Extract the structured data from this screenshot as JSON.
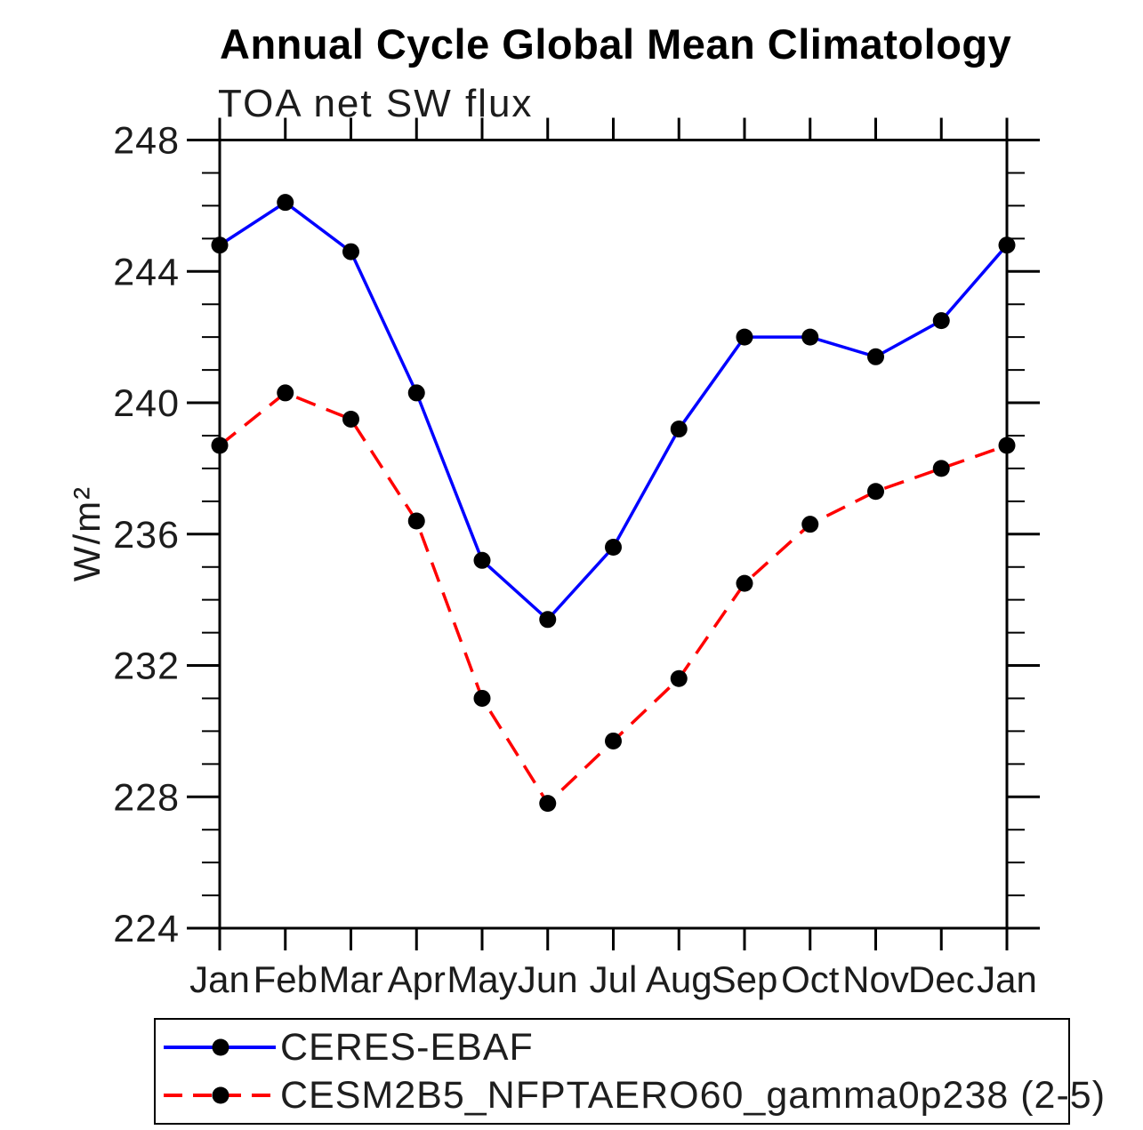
{
  "header": {
    "title": "Annual Cycle Global Mean Climatology",
    "subtitle": "TOA net SW flux"
  },
  "chart_data": {
    "type": "line",
    "title": "Annual Cycle Global Mean Climatology",
    "subtitle": "TOA net SW flux",
    "xlabel": "",
    "ylabel": "W/m²",
    "categories": [
      "Jan",
      "Feb",
      "Mar",
      "Apr",
      "May",
      "Jun",
      "Jul",
      "Aug",
      "Sep",
      "Oct",
      "Nov",
      "Dec",
      "Jan"
    ],
    "ylim": [
      224,
      248
    ],
    "yticks_major": [
      224,
      228,
      232,
      236,
      240,
      244,
      248
    ],
    "ytick_minor_step": 1,
    "grid": false,
    "legend_position": "bottom-left-box",
    "axis_color": "#000000",
    "series": [
      {
        "name": "CERES-EBAF",
        "line_style": "solid",
        "color": "#0000ff",
        "marker": "filled-circle",
        "marker_color": "#000000",
        "values": [
          244.8,
          246.1,
          244.6,
          240.3,
          235.2,
          233.4,
          235.6,
          239.2,
          242.0,
          242.0,
          241.4,
          242.5,
          244.8
        ]
      },
      {
        "name": "CESM2B5_NFPTAERO60_gamma0p238 (2-5)",
        "line_style": "dashed",
        "color": "#ff0000",
        "marker": "filled-circle",
        "marker_color": "#000000",
        "values": [
          238.7,
          240.3,
          239.5,
          236.4,
          231.0,
          227.8,
          229.7,
          231.6,
          234.5,
          236.3,
          237.3,
          238.0,
          238.7
        ]
      }
    ]
  }
}
